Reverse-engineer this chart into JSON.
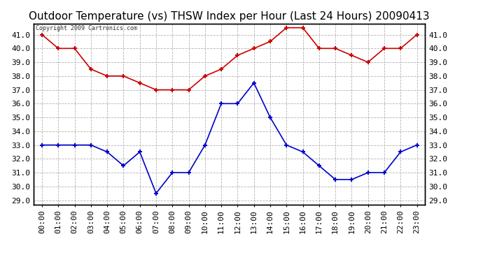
{
  "title": "Outdoor Temperature (vs) THSW Index per Hour (Last 24 Hours) 20090413",
  "copyright": "Copyright 2009 Cartronics.com",
  "x_labels": [
    "00:00",
    "01:00",
    "02:00",
    "03:00",
    "04:00",
    "05:00",
    "06:00",
    "07:00",
    "08:00",
    "09:00",
    "10:00",
    "11:00",
    "12:00",
    "13:00",
    "14:00",
    "15:00",
    "16:00",
    "17:00",
    "18:00",
    "19:00",
    "20:00",
    "21:00",
    "22:00",
    "23:00"
  ],
  "red_data": [
    41.0,
    40.0,
    40.0,
    38.5,
    38.0,
    38.0,
    37.5,
    37.0,
    37.0,
    37.0,
    38.0,
    38.5,
    39.5,
    40.0,
    40.5,
    41.5,
    41.5,
    40.0,
    40.0,
    39.5,
    39.0,
    40.0,
    40.0,
    41.0
  ],
  "blue_data": [
    33.0,
    33.0,
    33.0,
    33.0,
    32.5,
    31.5,
    32.5,
    29.5,
    31.0,
    31.0,
    33.0,
    36.0,
    36.0,
    37.5,
    35.0,
    33.0,
    32.5,
    31.5,
    30.5,
    30.5,
    31.0,
    31.0,
    32.5,
    33.0
  ],
  "ylim_min": 28.7,
  "ylim_max": 41.8,
  "yticks": [
    29.0,
    30.0,
    31.0,
    32.0,
    33.0,
    34.0,
    35.0,
    36.0,
    37.0,
    38.0,
    39.0,
    40.0,
    41.0
  ],
  "red_color": "#cc0000",
  "blue_color": "#0000cc",
  "bg_color": "#ffffff",
  "grid_color": "#aaaaaa",
  "title_fontsize": 11,
  "tick_fontsize": 8,
  "copyright_fontsize": 6
}
